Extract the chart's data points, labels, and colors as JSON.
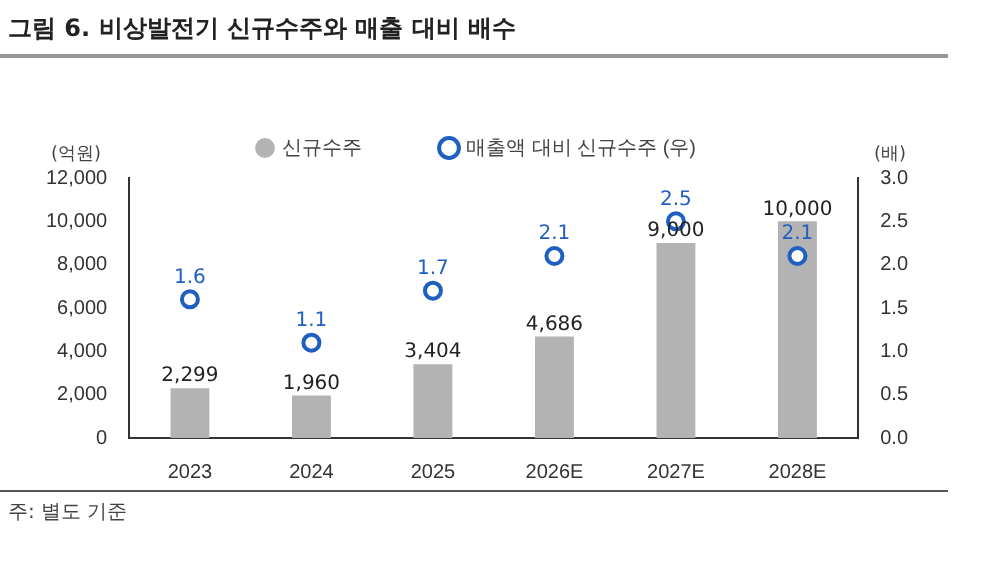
{
  "chart_data": {
    "type": "bar",
    "title": "그림 6. 비상발전기 신규수주와 매출 대비 배수",
    "ylabel": "(억원)",
    "y2label": "(배)",
    "annotations": [
      "주: 별도 기준"
    ],
    "categories": [
      "2023",
      "2024",
      "2025",
      "2026E",
      "2027E",
      "2028E"
    ],
    "series": [
      {
        "name": "신규수주",
        "color": "#b3b3b3",
        "values": [
          2299,
          1960,
          3404,
          4686,
          9000,
          10000
        ],
        "value_labels": [
          "2,299",
          "1,960",
          "3,404",
          "4,686",
          "9,000",
          "10,000"
        ]
      },
      {
        "name": "매출액 대비 신규수주 (우)",
        "type": "scatter",
        "axis": "y2",
        "color": "#1f5fbf",
        "values": [
          1.6,
          1.1,
          1.7,
          2.1,
          2.5,
          2.1
        ],
        "value_labels": [
          "1.6",
          "1.1",
          "1.7",
          "2.1",
          "2.5",
          "2.1"
        ]
      }
    ],
    "ylim": [
      0,
      12000
    ],
    "yticks": [
      {
        "value": 0,
        "label": "0"
      },
      {
        "value": 2000,
        "label": "2,000"
      },
      {
        "value": 4000,
        "label": "4,000"
      },
      {
        "value": 6000,
        "label": "6,000"
      },
      {
        "value": 8000,
        "label": "8,000"
      },
      {
        "value": 10000,
        "label": "10,000"
      },
      {
        "value": 12000,
        "label": "12,000"
      }
    ],
    "y2lim": [
      0,
      3
    ],
    "y2ticks": [
      {
        "value": 0,
        "label": "0.0"
      },
      {
        "value": 0.5,
        "label": "0.5"
      },
      {
        "value": 1,
        "label": "1.0"
      },
      {
        "value": 1.5,
        "label": "1.5"
      },
      {
        "value": 2,
        "label": "2.0"
      },
      {
        "value": 2.5,
        "label": "2.5"
      },
      {
        "value": 3,
        "label": "3.0"
      }
    ],
    "grid": false,
    "legend": "top",
    "marker": "circle"
  }
}
